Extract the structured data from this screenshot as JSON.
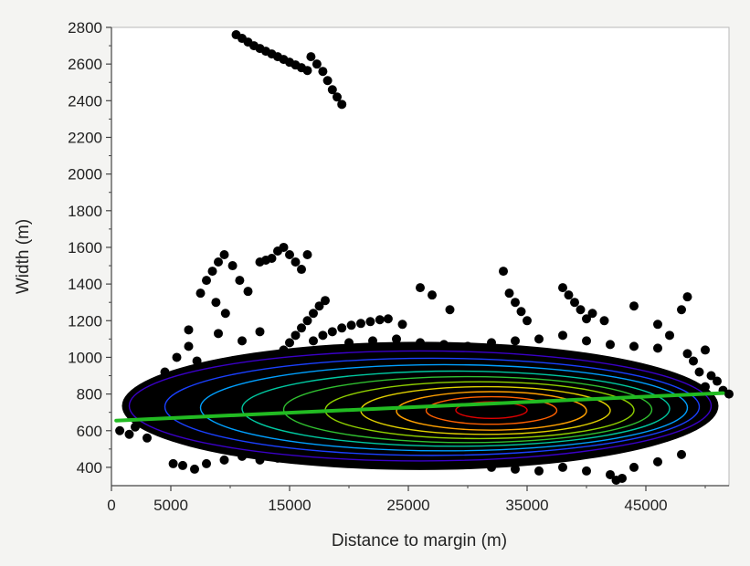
{
  "chart_data": {
    "type": "scatter",
    "title": "",
    "xlabel": "Distance to margin (m)",
    "ylabel": "Width (m)",
    "xlim": [
      0,
      52000
    ],
    "ylim": [
      300,
      2800
    ],
    "x_ticks": [
      0,
      5000,
      15000,
      25000,
      35000,
      45000
    ],
    "x_tick_labels": [
      "0",
      "5000",
      "15000",
      "25000",
      "35000",
      "45000"
    ],
    "y_ticks": [
      400,
      600,
      800,
      1000,
      1200,
      1400,
      1600,
      1800,
      2000,
      2200,
      2400,
      2600,
      2800
    ],
    "y_tick_labels": [
      "400",
      "600",
      "800",
      "1000",
      "1200",
      "1400",
      "1600",
      "1800",
      "2000",
      "2200",
      "2400",
      "2600",
      "2800"
    ],
    "grid": false,
    "legend": "none",
    "point_color": "#000000",
    "fit_line": {
      "color": "#22bb22",
      "points": [
        [
          400,
          655
        ],
        [
          51500,
          805
        ]
      ]
    },
    "density_contours": {
      "colors": [
        "#3a00c8",
        "#1a40ff",
        "#00a0ff",
        "#00c8a0",
        "#30c030",
        "#90d000",
        "#e0d000",
        "#ffa000",
        "#ff6000",
        "#e00000"
      ],
      "levels": [
        {
          "cx": 26000,
          "cy": 735,
          "rx": 24500,
          "ry": 300
        },
        {
          "cx": 27000,
          "cy": 730,
          "rx": 22500,
          "ry": 265
        },
        {
          "cx": 28000,
          "cy": 725,
          "rx": 20500,
          "ry": 235
        },
        {
          "cx": 29000,
          "cy": 720,
          "rx": 18000,
          "ry": 205
        },
        {
          "cx": 30000,
          "cy": 715,
          "rx": 15500,
          "ry": 180
        },
        {
          "cx": 31000,
          "cy": 712,
          "rx": 13000,
          "ry": 155
        },
        {
          "cx": 31500,
          "cy": 710,
          "rx": 10500,
          "ry": 130
        },
        {
          "cx": 32000,
          "cy": 708,
          "rx": 8000,
          "ry": 105
        },
        {
          "cx": 32000,
          "cy": 710,
          "rx": 5500,
          "ry": 75
        },
        {
          "cx": 32000,
          "cy": 712,
          "rx": 3000,
          "ry": 45
        }
      ]
    },
    "series": [
      {
        "marker": "circle",
        "points": [
          [
            10500,
            2760
          ],
          [
            11000,
            2740
          ],
          [
            11500,
            2720
          ],
          [
            12000,
            2700
          ],
          [
            12500,
            2685
          ],
          [
            13000,
            2670
          ],
          [
            13500,
            2655
          ],
          [
            14000,
            2640
          ],
          [
            14500,
            2625
          ],
          [
            15000,
            2610
          ],
          [
            15500,
            2595
          ],
          [
            16000,
            2580
          ],
          [
            16500,
            2565
          ],
          [
            16800,
            2640
          ],
          [
            17300,
            2600
          ],
          [
            17800,
            2560
          ],
          [
            18200,
            2510
          ],
          [
            18600,
            2460
          ],
          [
            19000,
            2420
          ],
          [
            19400,
            2380
          ],
          [
            7500,
            1350
          ],
          [
            8000,
            1420
          ],
          [
            8500,
            1470
          ],
          [
            9000,
            1520
          ],
          [
            9500,
            1560
          ],
          [
            10200,
            1500
          ],
          [
            10800,
            1420
          ],
          [
            11500,
            1360
          ],
          [
            8800,
            1300
          ],
          [
            9600,
            1240
          ],
          [
            12500,
            1520
          ],
          [
            13000,
            1530
          ],
          [
            13500,
            1540
          ],
          [
            14000,
            1580
          ],
          [
            14500,
            1600
          ],
          [
            15000,
            1560
          ],
          [
            15500,
            1520
          ],
          [
            16000,
            1480
          ],
          [
            16500,
            1560
          ],
          [
            14000,
            1000
          ],
          [
            14500,
            1040
          ],
          [
            15000,
            1080
          ],
          [
            15500,
            1120
          ],
          [
            16000,
            1160
          ],
          [
            16500,
            1200
          ],
          [
            17000,
            1240
          ],
          [
            17500,
            1280
          ],
          [
            18000,
            1310
          ],
          [
            17000,
            1090
          ],
          [
            17800,
            1120
          ],
          [
            18600,
            1140
          ],
          [
            19400,
            1160
          ],
          [
            20200,
            1175
          ],
          [
            21000,
            1185
          ],
          [
            21800,
            1195
          ],
          [
            22600,
            1205
          ],
          [
            23300,
            1210
          ],
          [
            6500,
            1150
          ],
          [
            9000,
            1130
          ],
          [
            11000,
            1090
          ],
          [
            12500,
            1140
          ],
          [
            26000,
            1380
          ],
          [
            27000,
            1340
          ],
          [
            28500,
            1260
          ],
          [
            24500,
            1180
          ],
          [
            33000,
            1470
          ],
          [
            33500,
            1350
          ],
          [
            34000,
            1300
          ],
          [
            34500,
            1250
          ],
          [
            35000,
            1200
          ],
          [
            38000,
            1380
          ],
          [
            38500,
            1340
          ],
          [
            39000,
            1300
          ],
          [
            39500,
            1260
          ],
          [
            40000,
            1210
          ],
          [
            40500,
            1240
          ],
          [
            41500,
            1200
          ],
          [
            44000,
            1280
          ],
          [
            46000,
            1180
          ],
          [
            47000,
            1120
          ],
          [
            48500,
            1330
          ],
          [
            48000,
            1260
          ],
          [
            3000,
            820
          ],
          [
            3500,
            860
          ],
          [
            4500,
            920
          ],
          [
            5500,
            1000
          ],
          [
            6500,
            1060
          ],
          [
            7200,
            980
          ],
          [
            4000,
            700
          ],
          [
            2000,
            620
          ],
          [
            3000,
            560
          ],
          [
            1500,
            580
          ],
          [
            700,
            600
          ],
          [
            5200,
            420
          ],
          [
            6000,
            410
          ],
          [
            7000,
            390
          ],
          [
            8000,
            420
          ],
          [
            9500,
            440
          ],
          [
            11000,
            460
          ],
          [
            12500,
            440
          ],
          [
            14000,
            450
          ],
          [
            16000,
            460
          ],
          [
            18000,
            470
          ],
          [
            20000,
            460
          ],
          [
            22000,
            455
          ],
          [
            24000,
            450
          ],
          [
            26000,
            440
          ],
          [
            28000,
            430
          ],
          [
            30000,
            420
          ],
          [
            32000,
            400
          ],
          [
            34000,
            390
          ],
          [
            36000,
            380
          ],
          [
            38000,
            400
          ],
          [
            40000,
            380
          ],
          [
            42000,
            360
          ],
          [
            43000,
            340
          ],
          [
            42500,
            330
          ],
          [
            44000,
            400
          ],
          [
            46000,
            430
          ],
          [
            48000,
            470
          ],
          [
            50000,
            840
          ],
          [
            50500,
            900
          ],
          [
            51000,
            870
          ],
          [
            51500,
            820
          ],
          [
            52000,
            800
          ],
          [
            49500,
            920
          ],
          [
            49000,
            980
          ],
          [
            48500,
            1020
          ],
          [
            50000,
            1040
          ],
          [
            20000,
            1080
          ],
          [
            22000,
            1090
          ],
          [
            24000,
            1100
          ],
          [
            26000,
            1080
          ],
          [
            28000,
            1070
          ],
          [
            30000,
            1060
          ],
          [
            32000,
            1080
          ],
          [
            34000,
            1090
          ],
          [
            36000,
            1100
          ],
          [
            38000,
            1120
          ],
          [
            40000,
            1090
          ],
          [
            42000,
            1070
          ],
          [
            44000,
            1060
          ],
          [
            46000,
            1050
          ],
          [
            3500,
            760
          ],
          [
            4500,
            790
          ],
          [
            5500,
            820
          ],
          [
            7000,
            850
          ],
          [
            8500,
            880
          ],
          [
            10000,
            900
          ],
          [
            11500,
            930
          ],
          [
            13000,
            950
          ],
          [
            15000,
            980
          ],
          [
            17000,
            990
          ],
          [
            19000,
            1010
          ],
          [
            21000,
            1020
          ],
          [
            23000,
            1020
          ]
        ]
      }
    ]
  }
}
